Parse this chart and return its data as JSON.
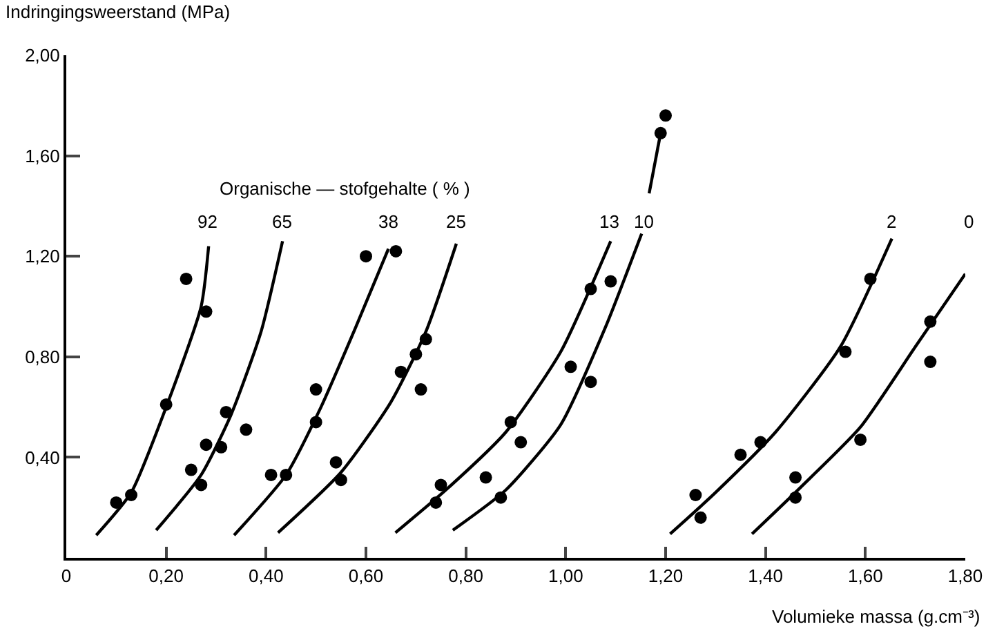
{
  "chart_data": {
    "type": "scatter",
    "xlabel": "Volumieke massa (g.cm⁻³)",
    "ylabel": "Indringingsweerstand (MPa)",
    "xlim": [
      0,
      1.8
    ],
    "ylim": [
      0,
      2
    ],
    "xticks": [
      0,
      {
        "value": 0.2,
        "label": "0,20"
      },
      {
        "value": 0.4,
        "label": "0,40"
      },
      {
        "value": 0.6,
        "label": "0,60"
      },
      {
        "value": 0.8,
        "label": "0,80"
      },
      {
        "value": 1.0,
        "label": "1,00"
      },
      {
        "value": 1.2,
        "label": "1,20"
      },
      {
        "value": 1.4,
        "label": "1,40"
      },
      {
        "value": 1.6,
        "label": "1,60"
      },
      {
        "value": 1.8,
        "label": "1,80"
      }
    ],
    "yticks": [
      {
        "value": 0,
        "label": null
      },
      {
        "value": 0.4,
        "label": "0,40"
      },
      {
        "value": 0.8,
        "label": "0,80"
      },
      {
        "value": 1.2,
        "label": "1,20"
      },
      {
        "value": 1.6,
        "label": "1,60"
      },
      {
        "value": 2.0,
        "label": "2,00"
      }
    ],
    "grid": false,
    "line_style": "solid",
    "annotations": [
      "Organische — stofgehalte ( % )",
      "92",
      "65",
      "38",
      "25",
      "13",
      "10",
      "2",
      "0"
    ],
    "series": [
      {
        "marker": "circle",
        "color": "#000000",
        "x": [
          0.1,
          0.13,
          0.2,
          0.24,
          0.28
        ],
        "values": [
          0.22,
          0.25,
          0.61,
          1.11,
          0.98
        ]
      },
      {
        "marker": "circle",
        "color": "#000000",
        "x": [
          0.25,
          0.27,
          0.28,
          0.31,
          0.32,
          0.36
        ],
        "values": [
          0.35,
          0.29,
          0.45,
          0.44,
          0.58,
          0.51
        ]
      },
      {
        "marker": "circle",
        "color": "#000000",
        "x": [
          0.41,
          0.44,
          0.5,
          0.5,
          0.6,
          0.66
        ],
        "values": [
          0.33,
          0.33,
          0.54,
          0.67,
          1.2,
          1.22
        ]
      },
      {
        "marker": "circle",
        "color": "#000000",
        "x": [
          0.54,
          0.55,
          0.67,
          0.7,
          0.71,
          0.72
        ],
        "values": [
          0.38,
          0.31,
          0.74,
          0.81,
          0.67,
          0.87
        ]
      },
      {
        "marker": "circle",
        "color": "#000000",
        "x": [
          0.74,
          0.75,
          0.84,
          0.89,
          0.91,
          1.01,
          1.05
        ],
        "values": [
          0.22,
          0.29,
          0.32,
          0.54,
          0.46,
          0.76,
          1.07
        ]
      },
      {
        "marker": "circle",
        "color": "#000000",
        "x": [
          0.87,
          1.05,
          1.09,
          1.19,
          1.2
        ],
        "values": [
          0.24,
          0.7,
          1.1,
          1.69,
          1.76
        ]
      },
      {
        "marker": "circle",
        "color": "#000000",
        "x": [
          1.26,
          1.27,
          1.35,
          1.39,
          1.56,
          1.61
        ],
        "values": [
          0.25,
          0.16,
          0.41,
          0.46,
          0.82,
          1.11
        ]
      },
      {
        "marker": "circle",
        "color": "#000000",
        "x": [
          1.46,
          1.46,
          1.59,
          1.73,
          1.73
        ],
        "values": [
          0.32,
          0.24,
          0.47,
          0.78,
          0.94
        ]
      },
      {
        "type": "line",
        "color": "#000000",
        "x": [
          0.06,
          0.13,
          0.2,
          0.27,
          0.285
        ],
        "values": [
          0.09,
          0.26,
          0.6,
          1.0,
          1.24
        ]
      },
      {
        "type": "line",
        "color": "#000000",
        "x": [
          0.18,
          0.27,
          0.33,
          0.39,
          0.433
        ],
        "values": [
          0.11,
          0.33,
          0.57,
          0.9,
          1.26
        ]
      },
      {
        "type": "line",
        "color": "#000000",
        "x": [
          0.336,
          0.44,
          0.51,
          0.58,
          0.645
        ],
        "values": [
          0.09,
          0.33,
          0.6,
          0.92,
          1.23
        ]
      },
      {
        "type": "line",
        "color": "#000000",
        "x": [
          0.424,
          0.55,
          0.65,
          0.72,
          0.781
        ],
        "values": [
          0.1,
          0.34,
          0.62,
          0.9,
          1.25
        ]
      },
      {
        "type": "line",
        "color": "#000000",
        "x": [
          0.659,
          0.76,
          0.88,
          0.99,
          1.09
        ],
        "values": [
          0.1,
          0.27,
          0.5,
          0.82,
          1.26
        ]
      },
      {
        "type": "line",
        "color": "#000000",
        "x": [
          0.774,
          0.88,
          0.99,
          1.08,
          1.152,
          1.16,
          1.167,
          1.189
        ],
        "values": [
          0.11,
          0.27,
          0.53,
          0.92,
          1.29,
          null,
          1.45,
          1.68
        ]
      },
      {
        "type": "line",
        "color": "#000000",
        "x": [
          1.209,
          1.3,
          1.42,
          1.55,
          1.653
        ],
        "values": [
          0.095,
          0.26,
          0.5,
          0.84,
          1.27
        ]
      },
      {
        "type": "line",
        "color": "#000000",
        "x": [
          1.373,
          1.47,
          1.59,
          1.7,
          1.8
        ],
        "values": [
          0.095,
          0.28,
          0.52,
          0.84,
          1.13
        ]
      }
    ]
  }
}
